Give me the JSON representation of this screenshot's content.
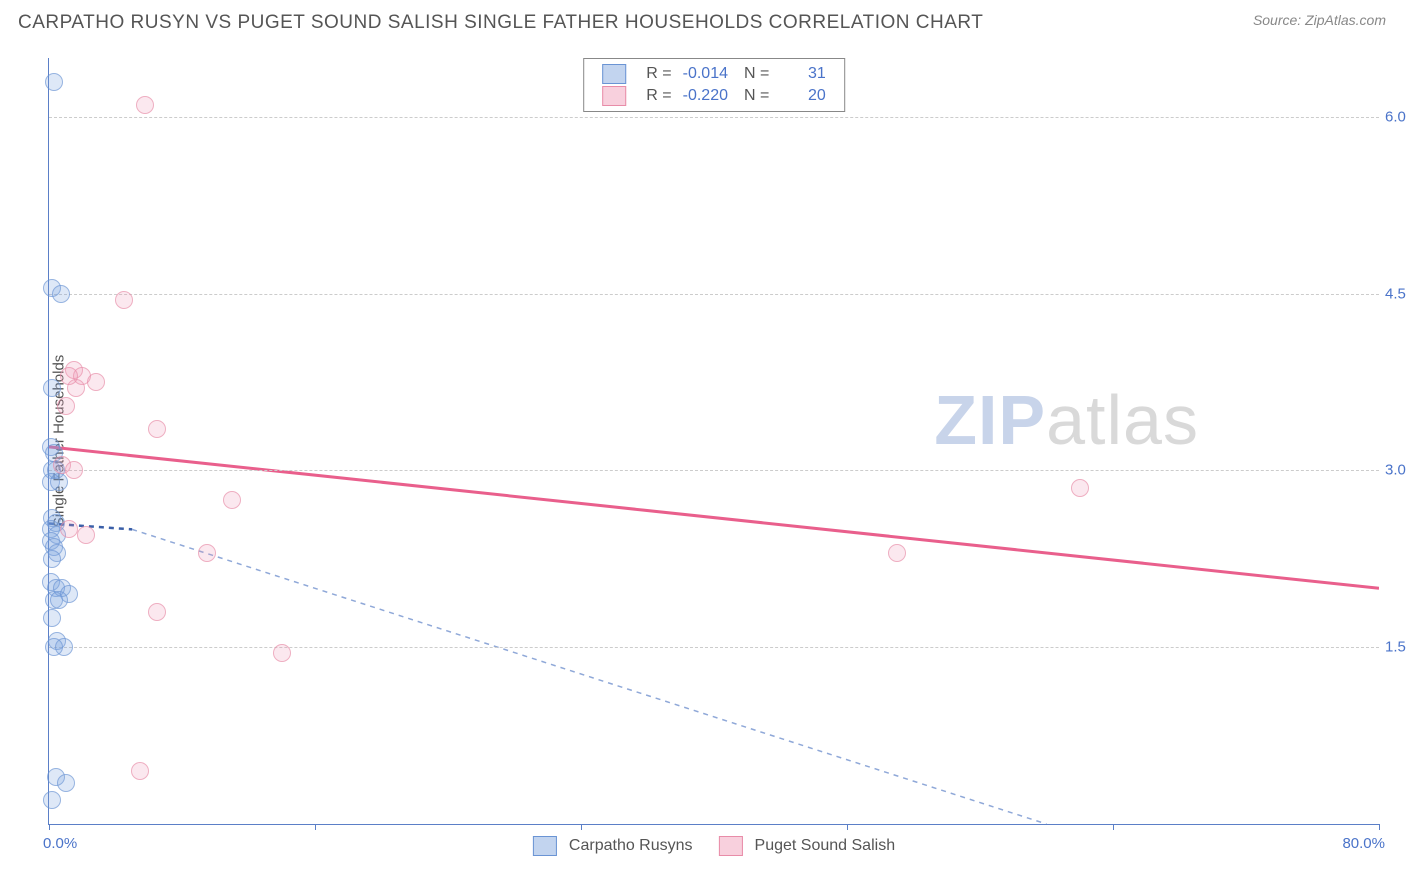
{
  "header": {
    "title": "CARPATHO RUSYN VS PUGET SOUND SALISH SINGLE FATHER HOUSEHOLDS CORRELATION CHART",
    "source_prefix": "Source: ",
    "source_name": "ZipAtlas.com"
  },
  "chart": {
    "type": "scatter",
    "ylabel": "Single Father Households",
    "xlim": [
      0,
      80
    ],
    "ylim": [
      0,
      6.5
    ],
    "x_tick_positions": [
      0,
      16,
      32,
      48,
      64,
      80
    ],
    "x_tick_labels_shown": {
      "left": "0.0%",
      "right": "80.0%"
    },
    "y_grid": [
      {
        "v": 1.5,
        "label": "1.5%"
      },
      {
        "v": 3.0,
        "label": "3.0%"
      },
      {
        "v": 4.5,
        "label": "4.5%"
      },
      {
        "v": 6.0,
        "label": "6.0%"
      }
    ],
    "background_color": "#ffffff",
    "grid_color": "#cccccc",
    "axis_color": "#5b7fc7",
    "tick_label_color": "#4a73c9",
    "series": [
      {
        "name": "Carpatho Rusyns",
        "color_fill": "rgba(120,160,220,0.35)",
        "color_stroke": "#6a94d4",
        "marker_size": 16,
        "trend": {
          "x1": 0,
          "y1": 2.55,
          "x2": 5,
          "y2": 2.5,
          "stroke": "#3a5fa8",
          "width": 2.5,
          "continues_dashed_to": {
            "x": 60,
            "y": 0
          },
          "dash": "5,5",
          "dash_color": "#8fa8d8"
        },
        "R": "-0.014",
        "N": "31",
        "points": [
          {
            "x": 0.3,
            "y": 6.3
          },
          {
            "x": 0.2,
            "y": 4.55
          },
          {
            "x": 0.7,
            "y": 4.5
          },
          {
            "x": 0.2,
            "y": 3.7
          },
          {
            "x": 0.1,
            "y": 3.2
          },
          {
            "x": 0.3,
            "y": 3.15
          },
          {
            "x": 0.2,
            "y": 3.0
          },
          {
            "x": 0.4,
            "y": 3.0
          },
          {
            "x": 0.1,
            "y": 2.9
          },
          {
            "x": 0.6,
            "y": 2.9
          },
          {
            "x": 0.2,
            "y": 2.6
          },
          {
            "x": 0.4,
            "y": 2.55
          },
          {
            "x": 0.15,
            "y": 2.5
          },
          {
            "x": 0.5,
            "y": 2.45
          },
          {
            "x": 0.1,
            "y": 2.4
          },
          {
            "x": 0.3,
            "y": 2.35
          },
          {
            "x": 0.5,
            "y": 2.3
          },
          {
            "x": 0.2,
            "y": 2.25
          },
          {
            "x": 0.15,
            "y": 2.05
          },
          {
            "x": 0.4,
            "y": 2.0
          },
          {
            "x": 0.8,
            "y": 2.0
          },
          {
            "x": 1.2,
            "y": 1.95
          },
          {
            "x": 0.3,
            "y": 1.9
          },
          {
            "x": 0.6,
            "y": 1.9
          },
          {
            "x": 0.2,
            "y": 1.75
          },
          {
            "x": 0.5,
            "y": 1.55
          },
          {
            "x": 0.9,
            "y": 1.5
          },
          {
            "x": 0.3,
            "y": 1.5
          },
          {
            "x": 0.4,
            "y": 0.4
          },
          {
            "x": 1.0,
            "y": 0.35
          },
          {
            "x": 0.2,
            "y": 0.2
          }
        ]
      },
      {
        "name": "Puget Sound Salish",
        "color_fill": "rgba(240,150,180,0.3)",
        "color_stroke": "#e88ca8",
        "marker_size": 16,
        "trend": {
          "x1": 0,
          "y1": 3.2,
          "x2": 80,
          "y2": 2.0,
          "stroke": "#e95f8c",
          "width": 3,
          "dash": null
        },
        "R": "-0.220",
        "N": "20",
        "points": [
          {
            "x": 5.8,
            "y": 6.1
          },
          {
            "x": 4.5,
            "y": 4.45
          },
          {
            "x": 1.5,
            "y": 3.85
          },
          {
            "x": 2.0,
            "y": 3.8
          },
          {
            "x": 2.8,
            "y": 3.75
          },
          {
            "x": 1.6,
            "y": 3.7
          },
          {
            "x": 1.2,
            "y": 3.8
          },
          {
            "x": 1.0,
            "y": 3.55
          },
          {
            "x": 6.5,
            "y": 3.35
          },
          {
            "x": 0.8,
            "y": 3.05
          },
          {
            "x": 1.5,
            "y": 3.0
          },
          {
            "x": 11,
            "y": 2.75
          },
          {
            "x": 1.2,
            "y": 2.5
          },
          {
            "x": 2.2,
            "y": 2.45
          },
          {
            "x": 9.5,
            "y": 2.3
          },
          {
            "x": 6.5,
            "y": 1.8
          },
          {
            "x": 14,
            "y": 1.45
          },
          {
            "x": 51,
            "y": 2.3
          },
          {
            "x": 62,
            "y": 2.85
          },
          {
            "x": 5.5,
            "y": 0.45
          }
        ]
      }
    ],
    "legend_top": {
      "rows": [
        {
          "swatch": "blue",
          "r_label": "R =",
          "r_val": "-0.014",
          "n_label": "N =",
          "n_val": "31"
        },
        {
          "swatch": "pink",
          "r_label": "R =",
          "r_val": "-0.220",
          "n_label": "N =",
          "n_val": "20"
        }
      ]
    },
    "legend_bottom": [
      {
        "swatch": "blue",
        "label": "Carpatho Rusyns"
      },
      {
        "swatch": "pink",
        "label": "Puget Sound Salish"
      }
    ],
    "watermark": {
      "part1": "ZIP",
      "part2": "atlas"
    }
  }
}
